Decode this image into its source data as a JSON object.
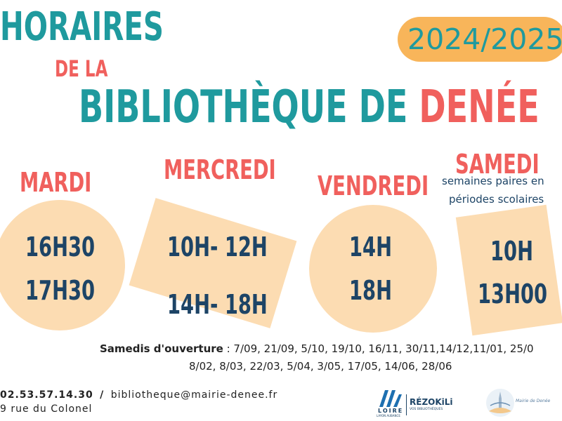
{
  "header": {
    "title_line1": "HORAIRES",
    "title_line2": "DE LA",
    "title_line3_part1": "BIBLIOTHÈQUE DE",
    "title_line3_part2": "DENÉE",
    "year_badge": "2024/2025"
  },
  "schedule": {
    "mardi": {
      "day": "MARDI",
      "time1": "16H30",
      "time2": "17H30"
    },
    "mercredi": {
      "day": "MERCREDI",
      "time1": "10H- 12H",
      "time2": "14H- 18H"
    },
    "vendredi": {
      "day": "VENDREDI",
      "time1": "14H",
      "time2": "18H"
    },
    "samedi": {
      "day": "SAMEDI",
      "note_line1": "semaines paires en",
      "note_line2": "périodes scolaires",
      "time1": "10H",
      "time2": "13H00"
    }
  },
  "openings": {
    "label": "Samedis d'ouverture",
    "dates_line1": " : 7/09, 21/09, 5/10, 19/10, 16/11, 30/11,14/12,11/01, 25/0",
    "dates_line2": "8/02, 8/03, 22/03, 5/04, 3/05, 17/05, 14/06, 28/06"
  },
  "contact": {
    "phone": "02.53.57.14.30",
    "separator": "/",
    "email": "bibliotheque@mairie-denee.fr",
    "address": "9 rue du Colonel"
  },
  "logos": {
    "loire_mark": "LOIRE",
    "loire_sub": "LAYON AUBANCE",
    "rezokili": "RÉZOKiLi",
    "rezokili_sub": "VOS BIBLIOTHÈQUES",
    "mairie": "Mairie de Denée"
  },
  "colors": {
    "teal": "#1f9a9e",
    "coral": "#f0605d",
    "navy": "#1d4466",
    "peach": "#fcdcb2",
    "badge": "#f8b55a"
  }
}
